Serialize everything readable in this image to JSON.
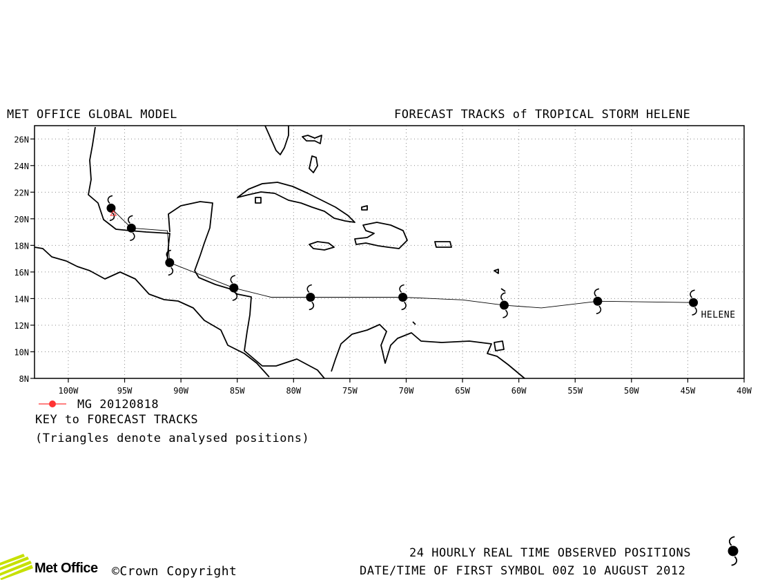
{
  "header": {
    "left_title": "MET OFFICE GLOBAL MODEL",
    "right_title": "FORECAST TRACKS of TROPICAL STORM HELENE"
  },
  "map": {
    "lon_range": [
      -103,
      -40
    ],
    "lat_range": [
      8,
      27
    ],
    "lat_ticks": [
      {
        "value": 26,
        "label": "26N"
      },
      {
        "value": 24,
        "label": "24N"
      },
      {
        "value": 22,
        "label": "22N"
      },
      {
        "value": 20,
        "label": "20N"
      },
      {
        "value": 18,
        "label": "18N"
      },
      {
        "value": 16,
        "label": "16N"
      },
      {
        "value": 14,
        "label": "14N"
      },
      {
        "value": 12,
        "label": "12N"
      },
      {
        "value": 10,
        "label": "10N"
      },
      {
        "value": 8,
        "label": "8N"
      }
    ],
    "lon_ticks": [
      {
        "value": -100,
        "label": "100W"
      },
      {
        "value": -95,
        "label": "95W"
      },
      {
        "value": -90,
        "label": "90W"
      },
      {
        "value": -85,
        "label": "85W"
      },
      {
        "value": -80,
        "label": "80W"
      },
      {
        "value": -75,
        "label": "75W"
      },
      {
        "value": -70,
        "label": "70W"
      },
      {
        "value": -65,
        "label": "65W"
      },
      {
        "value": -60,
        "label": "60W"
      },
      {
        "value": -55,
        "label": "55W"
      },
      {
        "value": -50,
        "label": "50W"
      },
      {
        "value": -45,
        "label": "45W"
      },
      {
        "value": -40,
        "label": "40W"
      }
    ],
    "grid": "dotted",
    "storm_label": "HELENE"
  },
  "chart_data": {
    "type": "scatter",
    "observed_track": [
      {
        "lon": -44.5,
        "lat": 13.7
      },
      {
        "lon": -53.0,
        "lat": 13.8
      },
      {
        "lon": -58.0,
        "lat": 13.3
      },
      {
        "lon": -61.3,
        "lat": 13.5
      },
      {
        "lon": -65.0,
        "lat": 13.9
      },
      {
        "lon": -70.3,
        "lat": 14.1
      },
      {
        "lon": -78.5,
        "lat": 14.1
      },
      {
        "lon": -82.0,
        "lat": 14.1
      },
      {
        "lon": -85.3,
        "lat": 14.8
      },
      {
        "lon": -91.0,
        "lat": 16.7
      },
      {
        "lon": -91.2,
        "lat": 19.1
      },
      {
        "lon": -94.4,
        "lat": 19.3
      },
      {
        "lon": -96.2,
        "lat": 20.8
      }
    ],
    "observed_positions": [
      {
        "lon": -44.5,
        "lat": 13.7
      },
      {
        "lon": -53.0,
        "lat": 13.8
      },
      {
        "lon": -61.3,
        "lat": 13.5
      },
      {
        "lon": -70.3,
        "lat": 14.1
      },
      {
        "lon": -78.5,
        "lat": 14.1
      },
      {
        "lon": -85.3,
        "lat": 14.8
      },
      {
        "lon": -91.0,
        "lat": 16.7
      },
      {
        "lon": -94.4,
        "lat": 19.3
      },
      {
        "lon": -96.2,
        "lat": 20.8
      }
    ],
    "forecast_track": {
      "name": "MG 20120818",
      "color": "#ff3333",
      "points": [
        {
          "lon": -96.0,
          "lat": 20.4
        }
      ]
    }
  },
  "legend": {
    "series_label": "MG 20120818",
    "series_color": "#ff3333",
    "key_title": "KEY to FORECAST TRACKS",
    "key_note": "(Triangles denote analysed positions)"
  },
  "footer": {
    "observed_label": "24 HOURLY REAL TIME OBSERVED POSITIONS",
    "datetime_label": "DATE/TIME OF FIRST SYMBOL 00Z 10 AUGUST 2012",
    "brand": "Met Office",
    "copyright": "©Crown Copyright",
    "logo_color": "#c6e000"
  }
}
